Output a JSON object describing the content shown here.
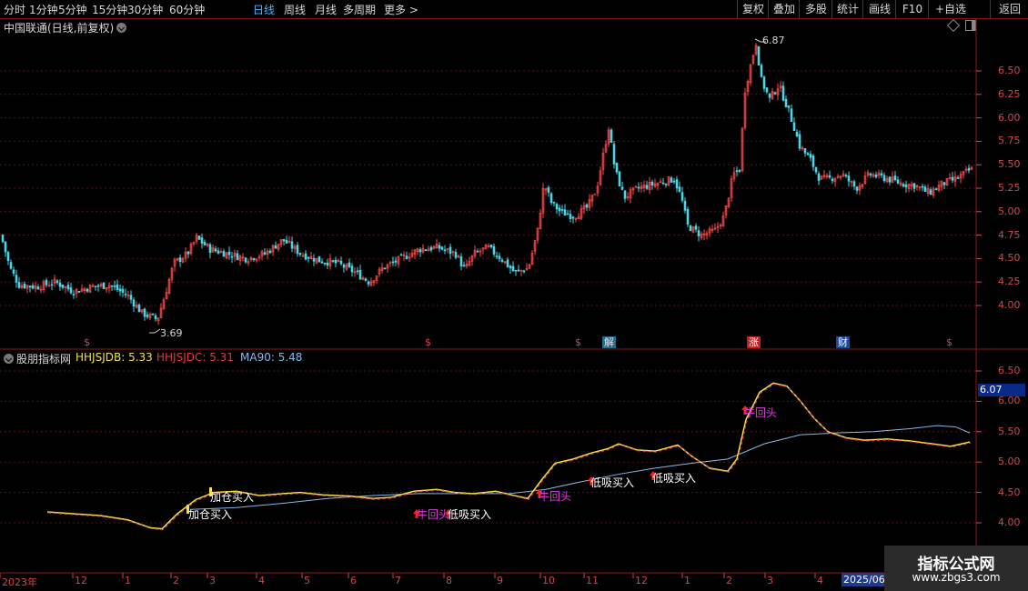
{
  "toolbar": {
    "timeframes": [
      {
        "label": "分时",
        "active": false
      },
      {
        "label": "1分钟",
        "active": false
      },
      {
        "label": "5分钟",
        "active": false
      },
      {
        "label": "15分钟",
        "active": false
      },
      {
        "label": "30分钟",
        "active": false
      },
      {
        "label": "60分钟",
        "active": false
      },
      {
        "label": "日线",
        "active": true
      },
      {
        "label": "周线",
        "active": false
      },
      {
        "label": "月线",
        "active": false
      },
      {
        "label": "多周期",
        "active": false
      },
      {
        "label": "更多 >",
        "active": false
      }
    ],
    "right_buttons": [
      "复权",
      "叠加",
      "多股",
      "统计",
      "画线",
      "F10",
      "+自选",
      "返回"
    ]
  },
  "main_chart": {
    "title": "中国联通(日线,前复权)",
    "y_labels": [
      "6.50",
      "6.25",
      "6.00",
      "5.75",
      "5.50",
      "5.25",
      "5.00",
      "4.75",
      "4.50",
      "4.25",
      "4.00"
    ],
    "high_marker": "6.87",
    "low_marker": "3.69",
    "event_markers": [
      {
        "text": "$",
        "color": "#e04040"
      },
      {
        "text": "$",
        "color": "#e04040"
      },
      {
        "text": "$",
        "color": "#e04040"
      },
      {
        "text": "解",
        "color": "#e0e0e0",
        "bg": "#2a6a8a"
      },
      {
        "text": "涨",
        "color": "#ffffff",
        "bg": "#c02020"
      },
      {
        "text": "财",
        "color": "#ffffff",
        "bg": "#1e4a9a"
      },
      {
        "text": "$",
        "color": "#e04040"
      }
    ]
  },
  "indicator": {
    "name": "股朋指标网",
    "legend": [
      {
        "label": "HHJSJDB: 5.33",
        "color": "#f0e050"
      },
      {
        "label": "HHJSJDC: 5.31",
        "color": "#e03a3a"
      },
      {
        "label": "MA90: 5.48",
        "color": "#8ab8e8"
      }
    ],
    "y_labels": [
      "6.50",
      "6.00",
      "5.50",
      "5.00",
      "4.50",
      "4.00"
    ],
    "current_value": "6.07",
    "signals": [
      {
        "text": "加仓买入",
        "color": "#ffffff"
      },
      {
        "text": "加仓买入",
        "color": "#ffffff"
      },
      {
        "text": "牛回头",
        "color": "#e040e0"
      },
      {
        "text": "低吸买入",
        "color": "#ffffff"
      },
      {
        "text": "牛回头",
        "color": "#e040e0"
      },
      {
        "text": "低吸买入",
        "color": "#ffffff"
      },
      {
        "text": "低吸买入",
        "color": "#ffffff"
      },
      {
        "text": "牛回头",
        "color": "#e040e0"
      }
    ]
  },
  "x_axis": {
    "labels": [
      "2023年",
      "12",
      "1",
      "2",
      "3",
      "4",
      "5",
      "6",
      "7",
      "8",
      "9",
      "10",
      "11",
      "12",
      "1",
      "2",
      "3",
      "4"
    ],
    "highlighted": "2025/06"
  },
  "watermark": {
    "line1": "指标公式网",
    "line2": "www.zbgs3.com"
  },
  "colors": {
    "up": "#ff4a4a",
    "down": "#4ad6e6",
    "axis": "#d04a4a",
    "ma90": "#8ab8e8"
  }
}
